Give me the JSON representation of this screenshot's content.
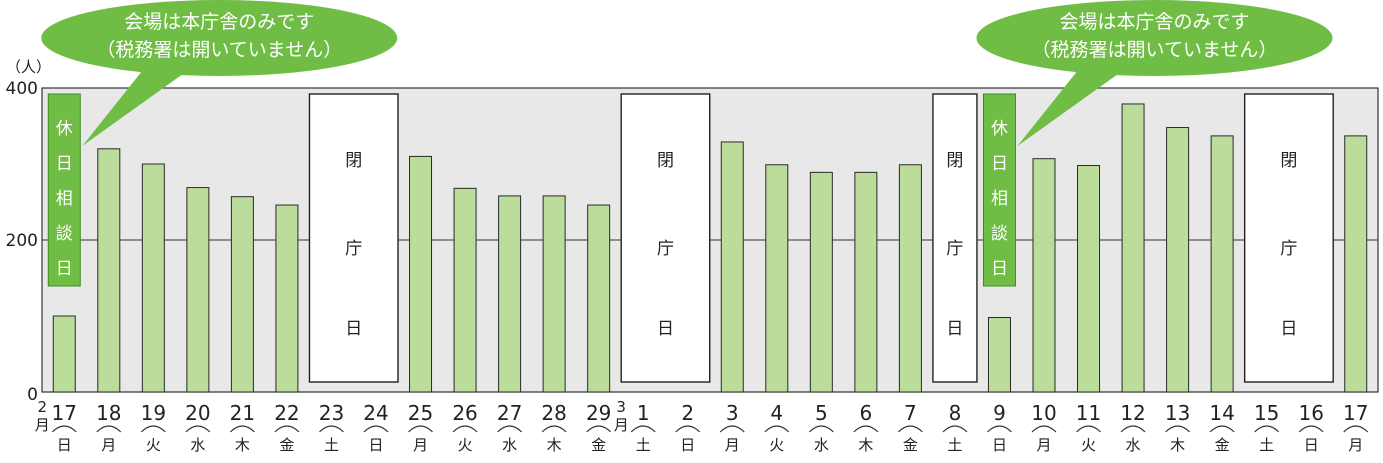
{
  "chart_data": {
    "type": "bar",
    "y_unit_label": "（人）",
    "ylim": [
      0,
      400
    ],
    "y_ticks": [
      "0",
      "200",
      "400"
    ],
    "grid": "horizontal at 200",
    "colors": {
      "bar_fill": "#bcdc9b",
      "bar_stroke": "#2a2a2a",
      "plot_bg": "#e8e8e8",
      "label_green": "#6fbd44"
    },
    "categories": [
      {
        "day": "17",
        "weekday": "日",
        "month": "2月",
        "value": 100,
        "type": "bar"
      },
      {
        "day": "18",
        "weekday": "月",
        "value": 320,
        "type": "bar"
      },
      {
        "day": "19",
        "weekday": "火",
        "value": 300,
        "type": "bar"
      },
      {
        "day": "20",
        "weekday": "水",
        "value": 269,
        "type": "bar"
      },
      {
        "day": "21",
        "weekday": "木",
        "value": 257,
        "type": "bar"
      },
      {
        "day": "22",
        "weekday": "金",
        "value": 246,
        "type": "bar"
      },
      {
        "day": "23",
        "weekday": "土",
        "value": null,
        "type": "closed"
      },
      {
        "day": "24",
        "weekday": "日",
        "value": null,
        "type": "closed"
      },
      {
        "day": "25",
        "weekday": "月",
        "value": 310,
        "type": "bar"
      },
      {
        "day": "26",
        "weekday": "火",
        "value": 268,
        "type": "bar"
      },
      {
        "day": "27",
        "weekday": "水",
        "value": 258,
        "type": "bar"
      },
      {
        "day": "28",
        "weekday": "木",
        "value": 258,
        "type": "bar"
      },
      {
        "day": "29",
        "weekday": "金",
        "value": 246,
        "type": "bar"
      },
      {
        "day": "1",
        "weekday": "土",
        "month": "3月",
        "value": null,
        "type": "closed"
      },
      {
        "day": "2",
        "weekday": "日",
        "value": null,
        "type": "closed"
      },
      {
        "day": "3",
        "weekday": "月",
        "value": 329,
        "type": "bar"
      },
      {
        "day": "4",
        "weekday": "火",
        "value": 299,
        "type": "bar"
      },
      {
        "day": "5",
        "weekday": "水",
        "value": 289,
        "type": "bar"
      },
      {
        "day": "6",
        "weekday": "木",
        "value": 289,
        "type": "bar"
      },
      {
        "day": "7",
        "weekday": "金",
        "value": 299,
        "type": "bar"
      },
      {
        "day": "8",
        "weekday": "土",
        "value": null,
        "type": "closed"
      },
      {
        "day": "9",
        "weekday": "日",
        "value": 98,
        "type": "bar"
      },
      {
        "day": "10",
        "weekday": "月",
        "value": 307,
        "type": "bar"
      },
      {
        "day": "11",
        "weekday": "火",
        "value": 298,
        "type": "bar"
      },
      {
        "day": "12",
        "weekday": "水",
        "value": 379,
        "type": "bar"
      },
      {
        "day": "13",
        "weekday": "木",
        "value": 348,
        "type": "bar"
      },
      {
        "day": "14",
        "weekday": "金",
        "value": 337,
        "type": "bar"
      },
      {
        "day": "15",
        "weekday": "土",
        "value": null,
        "type": "closed"
      },
      {
        "day": "16",
        "weekday": "日",
        "value": null,
        "type": "closed"
      },
      {
        "day": "17",
        "weekday": "月",
        "value": 337,
        "type": "bar"
      }
    ],
    "closed_periods": [
      {
        "start": 6,
        "end": 7,
        "label": "閉庁日"
      },
      {
        "start": 13,
        "end": 14,
        "label": "閉庁日"
      },
      {
        "start": 20,
        "end": 20,
        "label": "閉庁日"
      },
      {
        "start": 27,
        "end": 28,
        "label": "閉庁日"
      }
    ],
    "holiday_consultation": [
      {
        "index": 0,
        "label": "休日相談日"
      },
      {
        "index": 21,
        "label": "休日相談日"
      }
    ],
    "callouts": [
      {
        "index": 0,
        "line1": "会場は本庁舎のみです",
        "line2": "（税務署は開いていません）"
      },
      {
        "index": 21,
        "line1": "会場は本庁舎のみです",
        "line2": "（税務署は開いていません）"
      }
    ]
  }
}
